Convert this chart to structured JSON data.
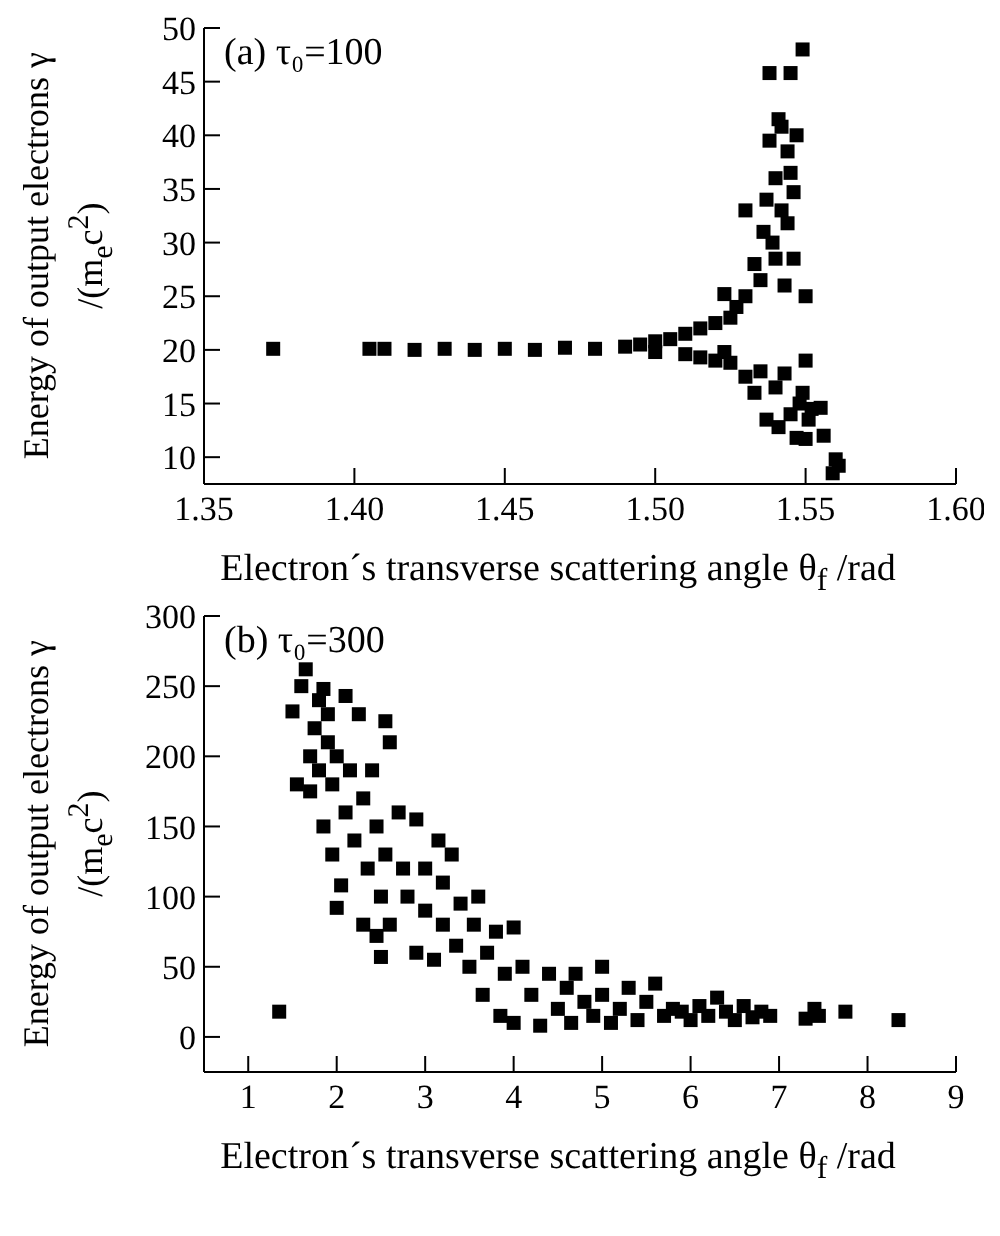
{
  "chart_data": [
    {
      "type": "scatter",
      "annotations": [
        "(a) τ₀=100"
      ],
      "xlabel": "Electron´s transverse scattering angle θ$_{f}$ /rad",
      "ylabel": "Energy of output electrons γ /(m$_{e}$c$^{2}$)",
      "marker": "square",
      "xlim": [
        1.35,
        1.6
      ],
      "xticks": [
        {
          "value": 1.35,
          "label": "1.35"
        },
        {
          "value": 1.4,
          "label": "1.40"
        },
        {
          "value": 1.45,
          "label": "1.45"
        },
        {
          "value": 1.5,
          "label": "1.50"
        },
        {
          "value": 1.55,
          "label": "1.55"
        },
        {
          "value": 1.6,
          "label": "1.60"
        }
      ],
      "ylim": [
        7.5,
        50
      ],
      "yticks": [
        10,
        15,
        20,
        25,
        30,
        35,
        40,
        45,
        50
      ],
      "series": [
        {
          "color": "#000000",
          "x": [
            1.373,
            1.405,
            1.41,
            1.42,
            1.43,
            1.44,
            1.45,
            1.46,
            1.47,
            1.48,
            1.49,
            1.495,
            1.5,
            1.5,
            1.505,
            1.51,
            1.51,
            1.515,
            1.515,
            1.52,
            1.52,
            1.525,
            1.525,
            1.523,
            1.523,
            1.527,
            1.53,
            1.53,
            1.53,
            1.533,
            1.533,
            1.535,
            1.535,
            1.536,
            1.537,
            1.537,
            1.538,
            1.538,
            1.539,
            1.54,
            1.54,
            1.54,
            1.541,
            1.541,
            1.542,
            1.542,
            1.543,
            1.543,
            1.544,
            1.544,
            1.545,
            1.545,
            1.545,
            1.546,
            1.546,
            1.547,
            1.547,
            1.548,
            1.549,
            1.549,
            1.55,
            1.55,
            1.55,
            1.551,
            1.552,
            1.555,
            1.556,
            1.559,
            1.56,
            1.561
          ],
          "values": [
            20.1,
            20.1,
            20.1,
            20.0,
            20.1,
            20.0,
            20.1,
            20.0,
            20.2,
            20.1,
            20.3,
            20.5,
            20.8,
            19.8,
            21.0,
            21.5,
            19.6,
            22,
            19.3,
            22.5,
            19.0,
            23.0,
            18.8,
            25.2,
            19.8,
            24,
            25,
            17.5,
            33,
            28,
            16,
            26.5,
            18,
            31,
            34,
            13.5,
            39.5,
            45.8,
            30,
            36,
            28.5,
            16.5,
            41.5,
            12.8,
            33,
            40.8,
            26,
            17.8,
            38.5,
            31.8,
            36.5,
            45.8,
            14,
            34.7,
            28.5,
            40,
            11.8,
            15,
            48,
            16,
            25,
            19,
            11.7,
            13.5,
            14.5,
            14.6,
            12,
            8.5,
            9.8,
            9.2
          ]
        }
      ]
    },
    {
      "type": "scatter",
      "annotations": [
        "(b) τ₀=300"
      ],
      "xlabel": "Electron´s transverse scattering angle θ$_{f}$ /rad",
      "ylabel": "Energy of output electrons γ /(m$_{e}$c$^{2}$)",
      "marker": "square",
      "xlim": [
        0.5,
        9
      ],
      "xticks": [
        1,
        2,
        3,
        4,
        5,
        6,
        7,
        8,
        9
      ],
      "ylim": [
        -25,
        300
      ],
      "yticks": [
        0,
        50,
        100,
        150,
        200,
        250,
        300
      ],
      "series": [
        {
          "color": "#000000",
          "x": [
            1.35,
            1.5,
            1.55,
            1.6,
            1.65,
            1.7,
            1.7,
            1.75,
            1.8,
            1.8,
            1.85,
            1.85,
            1.9,
            1.9,
            1.95,
            1.95,
            2.0,
            2.0,
            2.05,
            2.1,
            2.1,
            2.15,
            2.2,
            2.25,
            2.3,
            2.3,
            2.35,
            2.4,
            2.45,
            2.45,
            2.5,
            2.5,
            2.55,
            2.55,
            2.6,
            2.6,
            2.7,
            2.75,
            2.8,
            2.9,
            2.9,
            3.0,
            3.0,
            3.1,
            3.15,
            3.2,
            3.2,
            3.3,
            3.35,
            3.4,
            3.5,
            3.55,
            3.6,
            3.65,
            3.7,
            3.8,
            3.85,
            3.9,
            4.0,
            4.0,
            4.1,
            4.2,
            4.3,
            4.4,
            4.5,
            4.6,
            4.65,
            4.7,
            4.8,
            4.9,
            5.0,
            5.0,
            5.1,
            5.2,
            5.3,
            5.4,
            5.5,
            5.6,
            5.7,
            5.8,
            5.9,
            6.0,
            6.1,
            6.2,
            6.3,
            6.4,
            6.5,
            6.6,
            6.7,
            6.8,
            6.9,
            7.3,
            7.4,
            7.45,
            7.75,
            8.35
          ],
          "values": [
            18,
            232,
            180,
            250,
            262,
            200,
            175,
            220,
            190,
            240,
            248,
            150,
            210,
            230,
            130,
            180,
            92,
            200,
            108,
            243,
            160,
            190,
            140,
            230,
            80,
            170,
            120,
            190,
            72,
            150,
            57,
            100,
            225,
            130,
            210,
            80,
            160,
            120,
            100,
            155,
            60,
            90,
            120,
            55,
            140,
            80,
            110,
            130,
            65,
            95,
            50,
            80,
            100,
            30,
            60,
            75,
            15,
            45,
            10,
            78,
            50,
            30,
            8,
            45,
            20,
            35,
            10,
            45,
            25,
            15,
            50,
            30,
            10,
            20,
            35,
            12,
            25,
            38,
            15,
            20,
            18,
            12,
            22,
            15,
            28,
            18,
            12,
            22,
            14,
            18,
            15,
            13,
            20,
            15,
            18,
            12
          ]
        }
      ]
    }
  ]
}
